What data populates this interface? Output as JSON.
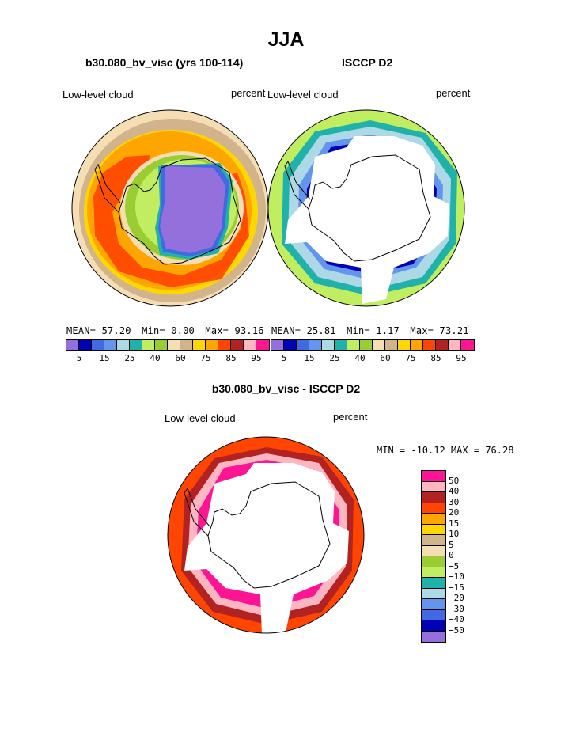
{
  "page_title": "JJA",
  "chart_data": [
    {
      "type": "heatmap",
      "projection": "south-polar-stereographic",
      "title": "b30.080_bv_visc (yrs 100-114)",
      "variable": "Low-level cloud",
      "units": "percent",
      "stats": {
        "mean_label": "MEAN=",
        "mean": "57.20",
        "min_label": "Min=",
        "min": "0.00",
        "max_label": "Max=",
        "max": "93.16"
      },
      "levels": [
        5,
        10,
        15,
        20,
        25,
        30,
        40,
        50,
        60,
        70,
        75,
        80,
        85,
        90,
        95
      ],
      "colorbar_labels": [
        "5",
        "15",
        "25",
        "40",
        "60",
        "75",
        "85",
        "95"
      ],
      "colors": [
        "#9370db",
        "#0000b4",
        "#4169e1",
        "#6495ed",
        "#add8e6",
        "#20b2aa",
        "#c0ee60",
        "#9acd32",
        "#f5deb3",
        "#d2b48c",
        "#ffd700",
        "#ffa500",
        "#ff4500",
        "#b22222",
        "#ffb6c1",
        "#ff1493"
      ],
      "zones": [
        "interior ~5",
        "coastal 25-60",
        "sea-ice edge 60-75",
        "mid-ocean 80-85",
        "outer 70-75"
      ]
    },
    {
      "type": "heatmap",
      "projection": "south-polar-stereographic",
      "title": "ISCCP D2",
      "variable": "Low-level cloud",
      "units": "percent",
      "stats": {
        "mean_label": "MEAN=",
        "mean": "25.81",
        "min_label": "Min=",
        "min": "1.17",
        "max_label": "Max=",
        "max": "73.21"
      },
      "levels": [
        5,
        10,
        15,
        20,
        25,
        30,
        40,
        50,
        60,
        70,
        75,
        80,
        85,
        90,
        95
      ],
      "colorbar_labels": [
        "5",
        "15",
        "25",
        "40",
        "60",
        "75",
        "85",
        "95"
      ],
      "colors": [
        "#9370db",
        "#0000b4",
        "#4169e1",
        "#6495ed",
        "#add8e6",
        "#20b2aa",
        "#c0ee60",
        "#9acd32",
        "#f5deb3",
        "#d2b48c",
        "#ffd700",
        "#ffa500",
        "#ff4500",
        "#b22222",
        "#ffb6c1",
        "#ff1493"
      ],
      "zones": [
        "missing near Antarctica",
        "ice edge 10-25",
        "outer 40-50"
      ]
    },
    {
      "type": "heatmap",
      "projection": "south-polar-stereographic",
      "title": "b30.080_bv_visc - ISCCP D2",
      "variable": "Low-level cloud",
      "units": "percent",
      "stats": {
        "min_label": "MIN =",
        "min": "-10.12",
        "max_label": "MAX =",
        "max": "76.28"
      },
      "levels": [
        -50,
        -40,
        -30,
        -20,
        -15,
        -10,
        -5,
        0,
        5,
        10,
        15,
        20,
        30,
        40,
        50
      ],
      "colorbar_labels": [
        "50",
        "40",
        "30",
        "20",
        "15",
        "10",
        "5",
        "0",
        "−5",
        "−10",
        "−15",
        "−20",
        "−30",
        "−40",
        "−50"
      ],
      "colors": [
        "#ff1493",
        "#ffb6c1",
        "#b22222",
        "#ff4500",
        "#ffa500",
        "#ffd700",
        "#d2b48c",
        "#f5deb3",
        "#9acd32",
        "#c0ee60",
        "#20b2aa",
        "#add8e6",
        "#6495ed",
        "#4169e1",
        "#0000b4",
        "#9370db"
      ],
      "zones": [
        "ice edge 40-50+",
        "mid-ocean 20-30",
        "outer 10-20"
      ]
    }
  ]
}
